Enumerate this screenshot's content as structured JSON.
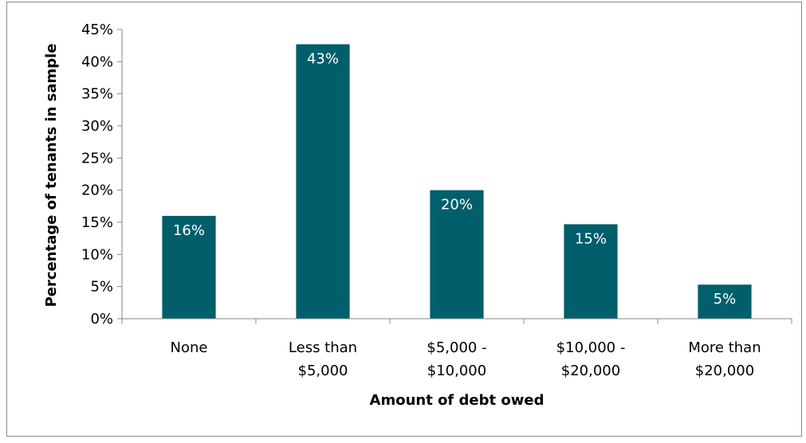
{
  "chart_data": {
    "type": "bar",
    "title": "",
    "categories": [
      [
        "None"
      ],
      [
        "Less than",
        "$5,000"
      ],
      [
        "$5,000 -",
        "$10,000"
      ],
      [
        "$10,000 -",
        "$20,000"
      ],
      [
        "More than",
        "$20,000"
      ]
    ],
    "values": [
      16,
      42.7,
      20,
      14.7,
      5.3
    ],
    "data_labels": [
      "16%",
      "43%",
      "20%",
      "15%",
      "5%"
    ],
    "xlabel": "Amount of debt owed",
    "ylabel": "Percentage of tenants in sample",
    "ylim": [
      0,
      45
    ],
    "yticks": [
      "0%",
      "5%",
      "10%",
      "15%",
      "20%",
      "25%",
      "30%",
      "35%",
      "40%",
      "45%"
    ],
    "grid": false,
    "legend": "none",
    "bar_color": "#005f6b",
    "data_label_color": "#ffffff"
  }
}
